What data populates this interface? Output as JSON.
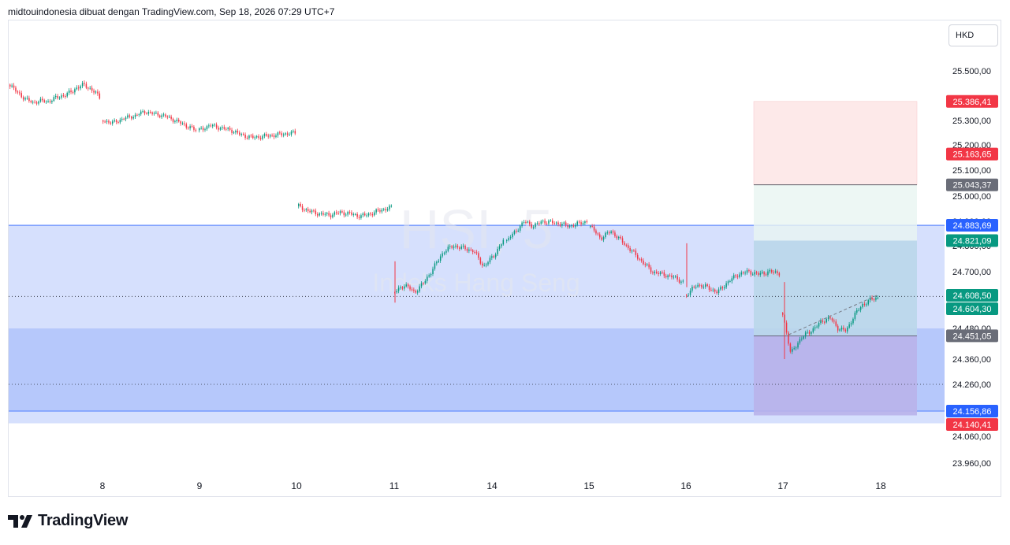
{
  "header": {
    "attribution": "midtouindonesia dibuat dengan TradingView.com, Sep 18, 2026 07:29 UTC+7"
  },
  "currency": "HKD",
  "footer": {
    "brand": "TradingView"
  },
  "colors": {
    "up": "#089981",
    "down": "#f23645",
    "zone_light": "#d6e0fd",
    "zone_dark": "#b6c8fb",
    "zone_line": "#2962ff",
    "target_zone": "#e8f5f1",
    "stop_zone": "#fde9e9",
    "stop_zone_purple": "#b9b2ea",
    "label_gray": "#6a6d78"
  },
  "chart_data": {
    "type": "candlestick",
    "title": "",
    "watermark": {
      "symbol": "HSI, 5",
      "name": "Indeks Hang Seng"
    },
    "y_axis": {
      "min": 23900,
      "max": 25600,
      "ticks": [
        "25.500,00",
        "25.400,00",
        "25.300,00",
        "25.200,00",
        "25.100,00",
        "25.000,00",
        "24.900,00",
        "24.800,00",
        "24.700,00",
        "24.480,00",
        "24.360,00",
        "24.260,00",
        "24.060,00",
        "23.960,00"
      ],
      "tick_values": [
        25500,
        25400,
        25300,
        25200,
        25100,
        25000,
        24900,
        24800,
        24700,
        24480,
        24360,
        24260,
        24060,
        23960
      ]
    },
    "x_axis": {
      "ticks": [
        "8",
        "9",
        "10",
        "11",
        "14",
        "15",
        "16",
        "17",
        "18"
      ]
    },
    "price_labels": [
      {
        "text": "25.386,41",
        "value": 25386.41,
        "color": "#f23645"
      },
      {
        "text": "25.163,65",
        "value": 25163.65,
        "color": "#f23645"
      },
      {
        "text": "25.043,37",
        "value": 25043.37,
        "color": "#6a6d78"
      },
      {
        "text": "24.883,69",
        "value": 24883.69,
        "color": "#2962ff"
      },
      {
        "text": "24.821,09",
        "value": 24821.09,
        "color": "#089981"
      },
      {
        "text": "24.608,50",
        "value": 24608.5,
        "color": "#089981"
      },
      {
        "text": "24.604,30",
        "value": 24604.3,
        "color": "#089981"
      },
      {
        "text": "24.451,05",
        "value": 24451.05,
        "color": "#6a6d78"
      },
      {
        "text": "24.156,86",
        "value": 24156.86,
        "color": "#2962ff"
      },
      {
        "text": "24.140,41",
        "value": 24140.41,
        "color": "#f23645"
      }
    ],
    "zones": [
      {
        "from": 24883.69,
        "to": 24110
      },
      {
        "from": 24480,
        "to": 24156.86
      }
    ],
    "position": {
      "entry": 24451.05,
      "stop": 25386.41,
      "target": 24140.41,
      "level": 25043.37
    },
    "current_price": 24604.3,
    "dotted_level": 24260,
    "segments": [
      {
        "day": "8",
        "points": [
          25450,
          25420,
          25400,
          25380,
          25390,
          25385,
          25400,
          25410,
          25420,
          25440,
          25450,
          25430,
          25405
        ]
      },
      {
        "day": "9",
        "points": [
          25300,
          25290,
          25310,
          25320,
          25340,
          25330,
          25320,
          25300,
          25280,
          25260
        ]
      },
      {
        "day": "9b",
        "points": [
          25260,
          25280,
          25270,
          25260,
          25240,
          25230,
          25235,
          25240,
          25245,
          25250
        ]
      },
      {
        "day": "10",
        "points": [
          24960,
          24940,
          24930,
          24925,
          24935,
          24930,
          24920,
          24930,
          24945,
          24955
        ]
      },
      {
        "day": "11",
        "points": [
          24620,
          24650,
          24620,
          24660,
          24720,
          24780,
          24800,
          24790,
          24780,
          24720,
          24760,
          24820
        ]
      },
      {
        "day": "14",
        "points": [
          24820,
          24860,
          24900,
          24880,
          24900,
          24895,
          24890,
          24880,
          24890,
          24900
        ]
      },
      {
        "day": "15",
        "points": [
          24880,
          24830,
          24860,
          24820,
          24780,
          24740,
          24700,
          24690,
          24680,
          24660
        ]
      },
      {
        "day": "16",
        "points": [
          24610,
          24650,
          24640,
          24620,
          24660,
          24690,
          24700,
          24690,
          24700,
          24695
        ]
      },
      {
        "day": "17",
        "points": [
          24540,
          24380,
          24430,
          24460,
          24480,
          24510,
          24520,
          24480,
          24470,
          24530,
          24570,
          24590,
          24600
        ]
      }
    ]
  }
}
